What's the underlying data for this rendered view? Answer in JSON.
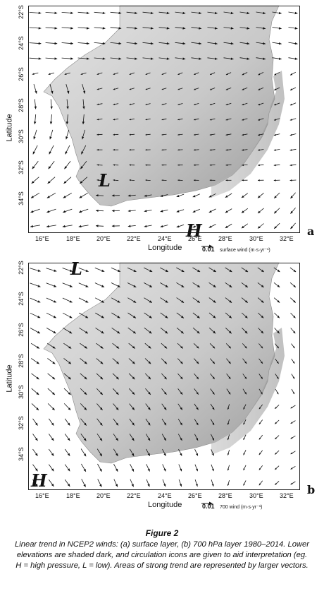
{
  "axes": {
    "ylabel": "Latitude",
    "xlabel": "Longitude",
    "lat_ticks": [
      "22°S",
      "24°S",
      "26°S",
      "28°S",
      "30°S",
      "32°S",
      "34°S"
    ],
    "lon_ticks": [
      "16°E",
      "18°E",
      "20°E",
      "22°E",
      "24°E",
      "26°E",
      "28°E",
      "30°E",
      "32°E"
    ]
  },
  "panels": [
    {
      "letter": "a",
      "ref_value": "0.01",
      "ref_text": "surface wind  (m·s·yr⁻¹)",
      "icons": [
        "L",
        "H"
      ]
    },
    {
      "letter": "b",
      "ref_value": "0.01",
      "ref_text": "700 wind  (m·s·yr⁻¹)",
      "icons": [
        "L",
        "H"
      ]
    }
  ],
  "caption": {
    "title": "Figure 2",
    "body": "Linear trend in NCEP2 winds: (a) surface layer, (b) 700 hPa layer 1980–2014. Lower elevations are shaded dark, and circulation icons are given to aid interpretation (eg. H = high pressure, L = low). Areas of strong trend are represented by larger vectors."
  },
  "colors": {
    "land_light": "#e4e4e4",
    "land_dark": "#9c9c9c",
    "vector": "#111111"
  }
}
